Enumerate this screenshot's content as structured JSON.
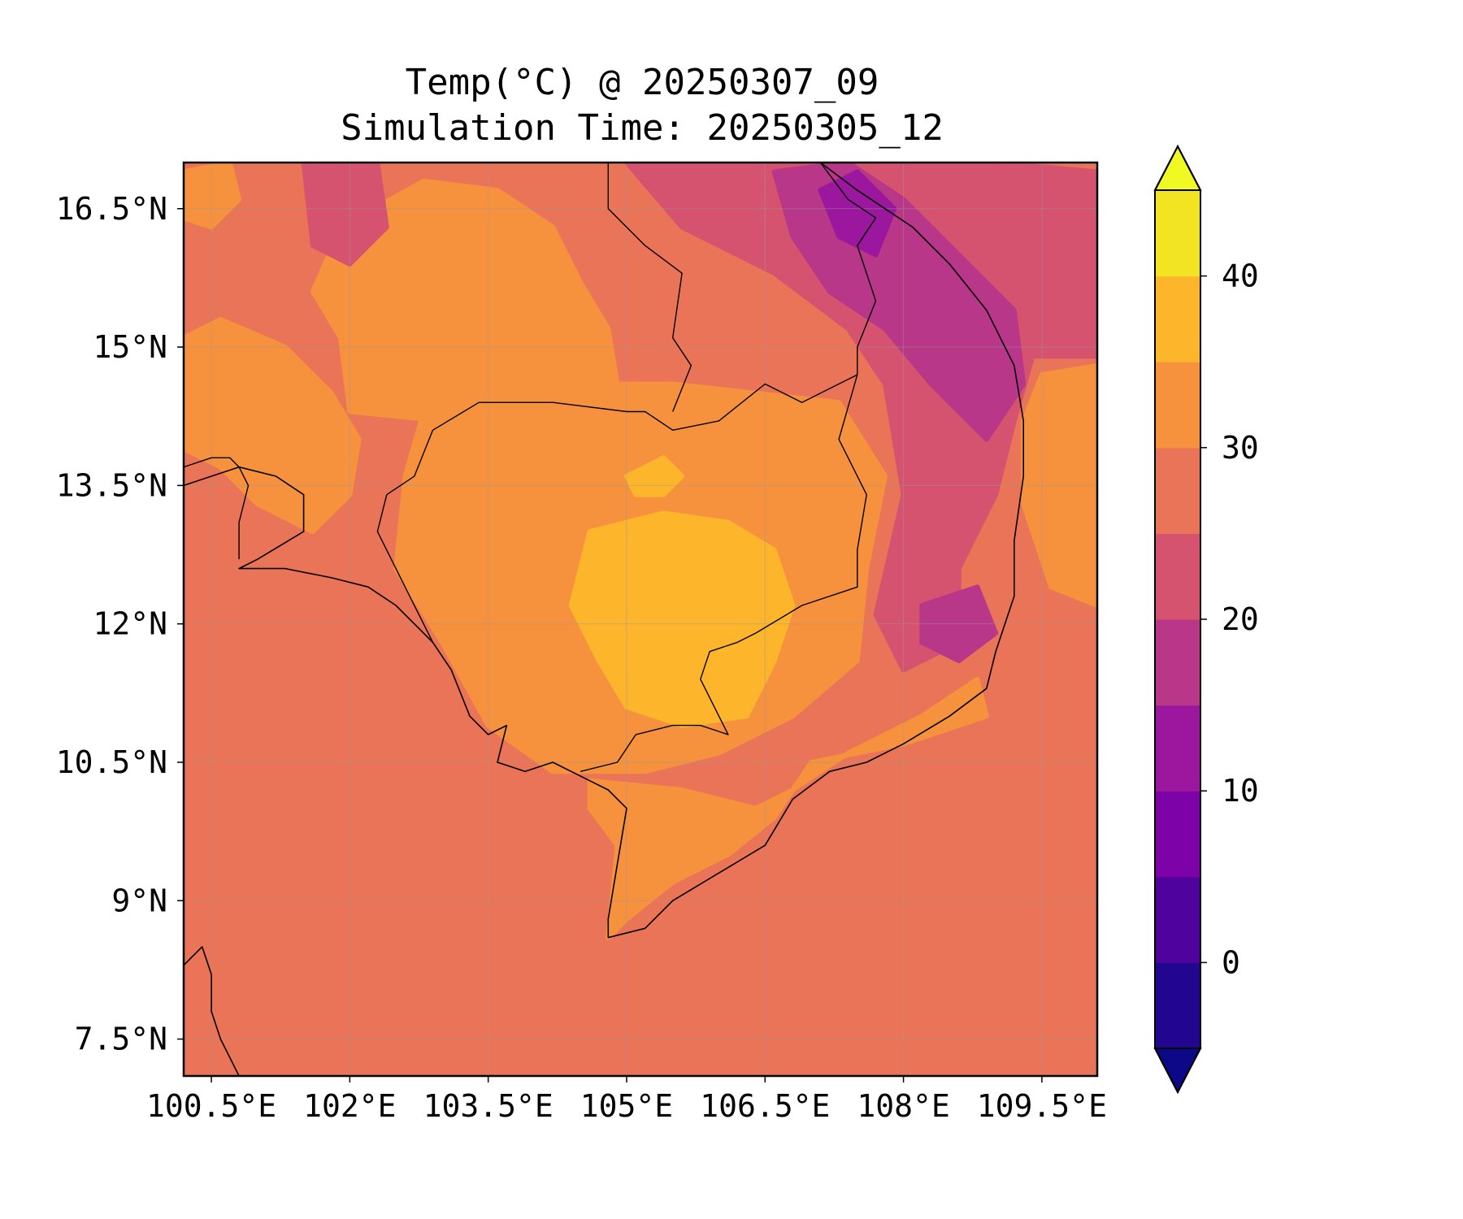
{
  "title": {
    "line1": "Temp(°C) @ 20250307_09",
    "line2": "Simulation Time: 20250305_12"
  },
  "map": {
    "type": "filled-contour",
    "variable": "Temp(°C)",
    "lon_range": [
      100.2,
      110.1
    ],
    "lat_range": [
      7.1,
      17.0
    ],
    "lon_ticks": [
      {
        "value": 100.5,
        "label": "100.5°E"
      },
      {
        "value": 102.0,
        "label": "102°E"
      },
      {
        "value": 103.5,
        "label": "103.5°E"
      },
      {
        "value": 105.0,
        "label": "105°E"
      },
      {
        "value": 106.5,
        "label": "106.5°E"
      },
      {
        "value": 108.0,
        "label": "108°E"
      },
      {
        "value": 109.5,
        "label": "109.5°E"
      }
    ],
    "lat_ticks": [
      {
        "value": 16.5,
        "label": "16.5°N"
      },
      {
        "value": 15.0,
        "label": "15°N"
      },
      {
        "value": 13.5,
        "label": "13.5°N"
      },
      {
        "value": 12.0,
        "label": "12°N"
      },
      {
        "value": 10.5,
        "label": "10.5°N"
      },
      {
        "value": 9.0,
        "label": "9°N"
      },
      {
        "value": 7.5,
        "label": "7.5°N"
      }
    ],
    "gridlines": true,
    "background_level_color": "#ea7457",
    "regions": [
      {
        "name": "cambodia-inland-warm",
        "level": "30-35",
        "color": "#f6913e",
        "poly": [
          [
            102.8,
            14.3
          ],
          [
            104.0,
            14.6
          ],
          [
            105.5,
            14.6
          ],
          [
            106.4,
            14.5
          ],
          [
            107.3,
            14.4
          ],
          [
            107.8,
            13.6
          ],
          [
            107.6,
            12.6
          ],
          [
            107.5,
            11.6
          ],
          [
            106.8,
            11.0
          ],
          [
            106.0,
            10.6
          ],
          [
            105.2,
            10.4
          ],
          [
            104.2,
            10.4
          ],
          [
            103.5,
            10.9
          ],
          [
            103.0,
            11.8
          ],
          [
            102.5,
            12.6
          ],
          [
            102.6,
            13.6
          ]
        ]
      },
      {
        "name": "thailand-plateau-warm",
        "level": "30-35",
        "color": "#f6913e",
        "poly": [
          [
            101.9,
            16.3
          ],
          [
            102.8,
            16.8
          ],
          [
            103.6,
            16.7
          ],
          [
            104.2,
            16.3
          ],
          [
            104.5,
            15.7
          ],
          [
            104.8,
            15.2
          ],
          [
            104.9,
            14.6
          ],
          [
            104.0,
            14.3
          ],
          [
            103.0,
            14.2
          ],
          [
            102.0,
            14.3
          ],
          [
            101.9,
            15.1
          ],
          [
            101.6,
            15.6
          ]
        ]
      },
      {
        "name": "thailand-west-warm",
        "level": "30-35",
        "color": "#f6913e",
        "poly": [
          [
            100.2,
            15.1
          ],
          [
            100.6,
            15.3
          ],
          [
            101.3,
            15.0
          ],
          [
            101.8,
            14.5
          ],
          [
            102.1,
            14.0
          ],
          [
            102.0,
            13.4
          ],
          [
            101.6,
            13.0
          ],
          [
            101.0,
            13.3
          ],
          [
            100.6,
            13.7
          ],
          [
            100.2,
            13.9
          ]
        ]
      },
      {
        "name": "thailand-nw-corner-warm",
        "level": "30-35",
        "color": "#f6913e",
        "poly": [
          [
            100.2,
            16.9
          ],
          [
            100.7,
            17.0
          ],
          [
            100.8,
            16.6
          ],
          [
            100.5,
            16.3
          ],
          [
            100.2,
            16.4
          ]
        ]
      },
      {
        "name": "mekong-delta-warm",
        "level": "30-35",
        "color": "#f6913e",
        "poly": [
          [
            104.6,
            10.3
          ],
          [
            105.6,
            10.2
          ],
          [
            106.4,
            10.0
          ],
          [
            106.8,
            10.2
          ],
          [
            107.4,
            10.6
          ],
          [
            108.2,
            11.0
          ],
          [
            108.8,
            11.4
          ],
          [
            108.9,
            11.0
          ],
          [
            108.0,
            10.7
          ],
          [
            107.0,
            10.5
          ],
          [
            106.6,
            9.9
          ],
          [
            106.1,
            9.5
          ],
          [
            105.5,
            9.2
          ],
          [
            105.0,
            8.8
          ],
          [
            104.8,
            8.6
          ],
          [
            104.9,
            9.6
          ],
          [
            104.6,
            10.0
          ]
        ]
      },
      {
        "name": "southeast-coast-warm",
        "level": "30-35",
        "color": "#f6913e",
        "poly": [
          [
            109.5,
            14.7
          ],
          [
            110.1,
            14.8
          ],
          [
            110.1,
            12.2
          ],
          [
            109.6,
            12.4
          ],
          [
            109.3,
            13.3
          ],
          [
            109.3,
            14.2
          ]
        ]
      },
      {
        "name": "cambodia-hot-core",
        "level": "35-40",
        "color": "#fdb52c",
        "poly": [
          [
            104.4,
            12.2
          ],
          [
            104.6,
            13.0
          ],
          [
            105.4,
            13.2
          ],
          [
            106.1,
            13.1
          ],
          [
            106.6,
            12.8
          ],
          [
            106.8,
            12.2
          ],
          [
            106.6,
            11.6
          ],
          [
            106.3,
            11.0
          ],
          [
            105.6,
            10.9
          ],
          [
            105.0,
            11.1
          ],
          [
            104.7,
            11.6
          ]
        ]
      },
      {
        "name": "cambodia-hot-north",
        "level": "35-40",
        "color": "#fdb52c",
        "poly": [
          [
            105.0,
            13.6
          ],
          [
            105.4,
            13.8
          ],
          [
            105.6,
            13.6
          ],
          [
            105.4,
            13.4
          ],
          [
            105.1,
            13.4
          ]
        ]
      },
      {
        "name": "laos-south-cool",
        "level": "20-25",
        "color": "#d5536f",
        "poly": [
          [
            105.0,
            17.0
          ],
          [
            109.0,
            17.0
          ],
          [
            110.1,
            16.9
          ],
          [
            110.1,
            14.9
          ],
          [
            109.4,
            14.9
          ],
          [
            109.2,
            14.2
          ],
          [
            109.0,
            13.4
          ],
          [
            108.6,
            12.6
          ],
          [
            108.6,
            11.8
          ],
          [
            108.0,
            11.5
          ],
          [
            107.7,
            12.1
          ],
          [
            108.0,
            13.4
          ],
          [
            107.8,
            14.6
          ],
          [
            107.4,
            15.2
          ],
          [
            106.6,
            15.8
          ],
          [
            105.6,
            16.3
          ]
        ]
      },
      {
        "name": "thailand-north-cool",
        "level": "20-25",
        "color": "#d5536f",
        "poly": [
          [
            101.5,
            17.0
          ],
          [
            102.3,
            17.0
          ],
          [
            102.4,
            16.3
          ],
          [
            102.0,
            15.9
          ],
          [
            101.6,
            16.1
          ]
        ]
      },
      {
        "name": "highland-cold",
        "level": "15-20",
        "color": "#b83788",
        "poly": [
          [
            106.6,
            16.9
          ],
          [
            107.4,
            17.0
          ],
          [
            108.0,
            16.6
          ],
          [
            108.6,
            16.0
          ],
          [
            109.2,
            15.4
          ],
          [
            109.3,
            14.6
          ],
          [
            108.9,
            14.0
          ],
          [
            108.3,
            14.6
          ],
          [
            107.8,
            15.2
          ],
          [
            107.2,
            15.6
          ],
          [
            106.8,
            16.2
          ]
        ]
      },
      {
        "name": "dalat-highland-cold",
        "level": "15-20",
        "color": "#b83788",
        "poly": [
          [
            108.2,
            12.2
          ],
          [
            108.8,
            12.4
          ],
          [
            109.0,
            11.9
          ],
          [
            108.6,
            11.6
          ],
          [
            108.2,
            11.8
          ]
        ]
      },
      {
        "name": "highland-coldest",
        "level": "10-15",
        "color": "#9b179e",
        "poly": [
          [
            107.1,
            16.7
          ],
          [
            107.5,
            16.9
          ],
          [
            107.9,
            16.5
          ],
          [
            107.7,
            16.0
          ],
          [
            107.3,
            16.2
          ]
        ]
      }
    ],
    "coastline": [
      [
        100.2,
        8.3
      ],
      [
        100.4,
        8.5
      ],
      [
        100.5,
        8.2
      ],
      [
        100.5,
        7.8
      ],
      [
        100.6,
        7.5
      ],
      [
        100.8,
        7.1
      ]
    ],
    "coastline_gulf": [
      [
        100.2,
        13.5
      ],
      [
        100.5,
        13.6
      ],
      [
        100.8,
        13.7
      ],
      [
        101.2,
        13.6
      ],
      [
        101.5,
        13.4
      ],
      [
        101.5,
        13.0
      ],
      [
        101.0,
        12.7
      ],
      [
        100.8,
        12.6
      ],
      [
        101.3,
        12.6
      ],
      [
        101.8,
        12.5
      ],
      [
        102.2,
        12.4
      ],
      [
        102.5,
        12.2
      ],
      [
        102.9,
        11.8
      ],
      [
        103.1,
        11.5
      ],
      [
        103.3,
        11.0
      ],
      [
        103.5,
        10.8
      ],
      [
        103.7,
        10.9
      ],
      [
        103.6,
        10.5
      ],
      [
        103.9,
        10.4
      ],
      [
        104.2,
        10.5
      ],
      [
        104.6,
        10.3
      ],
      [
        104.8,
        10.2
      ],
      [
        105.0,
        10.0
      ],
      [
        104.9,
        9.4
      ],
      [
        104.8,
        8.8
      ],
      [
        104.8,
        8.6
      ],
      [
        105.2,
        8.7
      ],
      [
        105.5,
        9.0
      ],
      [
        106.0,
        9.3
      ],
      [
        106.5,
        9.6
      ],
      [
        106.8,
        10.1
      ],
      [
        107.2,
        10.4
      ],
      [
        107.6,
        10.5
      ],
      [
        108.0,
        10.7
      ],
      [
        108.5,
        11.0
      ],
      [
        108.9,
        11.3
      ],
      [
        109.0,
        11.7
      ],
      [
        109.2,
        12.3
      ],
      [
        109.2,
        12.9
      ],
      [
        109.3,
        13.6
      ],
      [
        109.3,
        14.2
      ],
      [
        109.2,
        14.8
      ],
      [
        108.9,
        15.4
      ],
      [
        108.5,
        15.9
      ],
      [
        108.1,
        16.3
      ],
      [
        107.5,
        16.7
      ],
      [
        107.1,
        17.0
      ]
    ],
    "borders": [
      [
        [
          100.2,
          13.7
        ],
        [
          100.5,
          13.8
        ],
        [
          100.7,
          13.8
        ],
        [
          100.8,
          13.7
        ],
        [
          100.9,
          13.5
        ],
        [
          100.8,
          13.1
        ],
        [
          100.8,
          12.7
        ]
      ],
      [
        [
          102.4,
          13.4
        ],
        [
          102.7,
          13.6
        ],
        [
          102.9,
          14.1
        ],
        [
          103.4,
          14.4
        ],
        [
          104.2,
          14.4
        ],
        [
          105.0,
          14.3
        ],
        [
          105.2,
          14.3
        ],
        [
          105.5,
          14.1
        ],
        [
          106.0,
          14.2
        ],
        [
          106.5,
          14.6
        ],
        [
          106.9,
          14.4
        ],
        [
          107.5,
          14.7
        ]
      ],
      [
        [
          104.8,
          17.0
        ],
        [
          104.8,
          16.5
        ],
        [
          105.2,
          16.1
        ],
        [
          105.6,
          15.8
        ],
        [
          105.5,
          15.1
        ],
        [
          105.7,
          14.8
        ],
        [
          105.5,
          14.3
        ]
      ],
      [
        [
          107.5,
          14.7
        ],
        [
          107.3,
          14.0
        ],
        [
          107.6,
          13.4
        ],
        [
          107.5,
          12.8
        ],
        [
          107.5,
          12.4
        ],
        [
          106.9,
          12.2
        ],
        [
          106.4,
          11.9
        ],
        [
          106.2,
          11.8
        ],
        [
          105.9,
          11.7
        ],
        [
          105.8,
          11.4
        ],
        [
          106.0,
          11.0
        ],
        [
          106.1,
          10.8
        ],
        [
          105.8,
          10.9
        ],
        [
          105.5,
          10.9
        ],
        [
          105.1,
          10.8
        ],
        [
          104.9,
          10.5
        ],
        [
          104.5,
          10.4
        ]
      ],
      [
        [
          107.1,
          17.0
        ],
        [
          107.4,
          16.6
        ],
        [
          107.7,
          16.4
        ],
        [
          107.5,
          16.1
        ],
        [
          107.7,
          15.5
        ],
        [
          107.5,
          15.0
        ],
        [
          107.5,
          14.7
        ]
      ],
      [
        [
          102.4,
          13.4
        ],
        [
          102.3,
          13.0
        ],
        [
          102.5,
          12.6
        ],
        [
          102.7,
          12.2
        ],
        [
          102.9,
          11.8
        ]
      ]
    ]
  },
  "colorbar": {
    "orientation": "vertical",
    "extend": "both",
    "vmin": -5,
    "vmax": 45,
    "levels": [
      -5,
      0,
      5,
      10,
      15,
      20,
      25,
      30,
      35,
      40,
      45
    ],
    "colors": [
      "#220690",
      "#50029e",
      "#7d03a8",
      "#9b179e",
      "#b83788",
      "#d5536f",
      "#ea7457",
      "#f6913e",
      "#fdb52c",
      "#f3e423"
    ],
    "under_color": "#0d0887",
    "over_color": "#f0f921",
    "ticks": [
      {
        "value": 40,
        "label": "40"
      },
      {
        "value": 30,
        "label": "30"
      },
      {
        "value": 20,
        "label": "20"
      },
      {
        "value": 10,
        "label": "10"
      },
      {
        "value": 0,
        "label": "0"
      }
    ]
  }
}
